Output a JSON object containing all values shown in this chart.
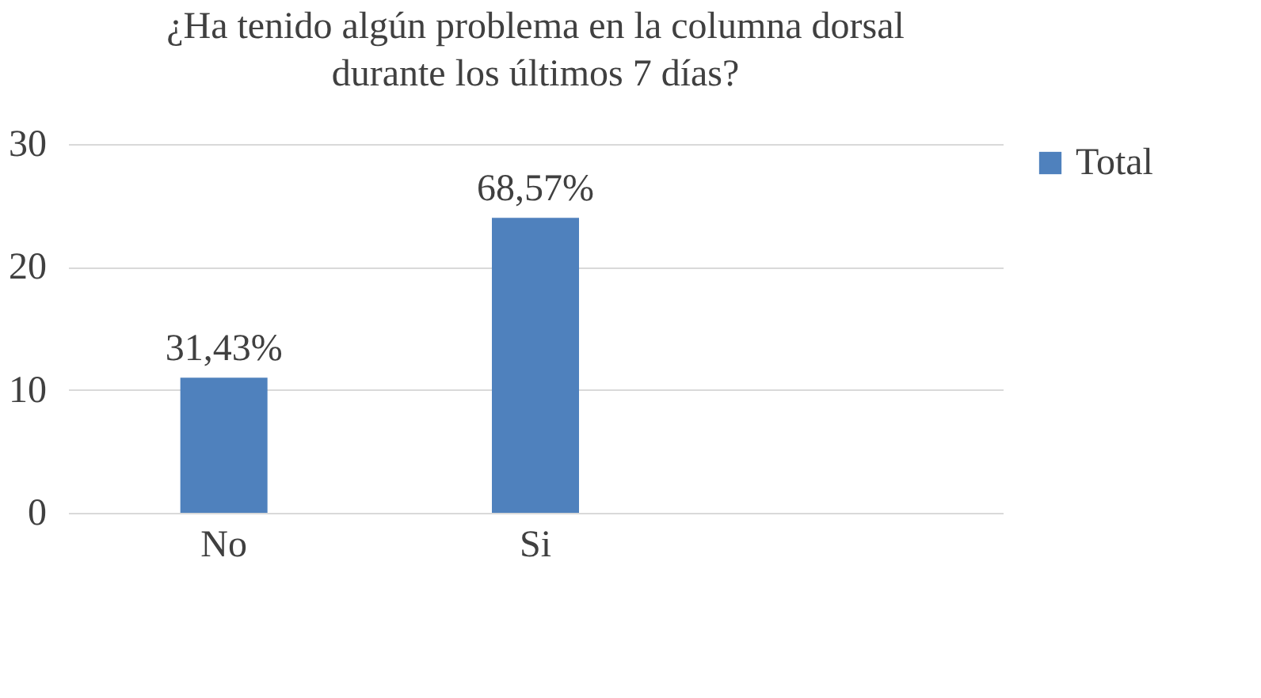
{
  "chart_data": {
    "type": "bar",
    "title": "¿Ha tenido algún problema en la columna dorsal durante los últimos 7 días?",
    "categories": [
      "No",
      "Si",
      null
    ],
    "series": [
      {
        "name": "Total",
        "color": "#4f81bd",
        "values": [
          11,
          24,
          null
        ]
      }
    ],
    "annotations": [
      {
        "text": "31,43%",
        "x": "No",
        "y": 11
      },
      {
        "text": "68,57%",
        "x": "Si",
        "y": 24
      }
    ],
    "ylim": [
      0,
      30
    ],
    "yticks": [
      0,
      10,
      20,
      30
    ],
    "grid": "y",
    "legend": "right"
  }
}
